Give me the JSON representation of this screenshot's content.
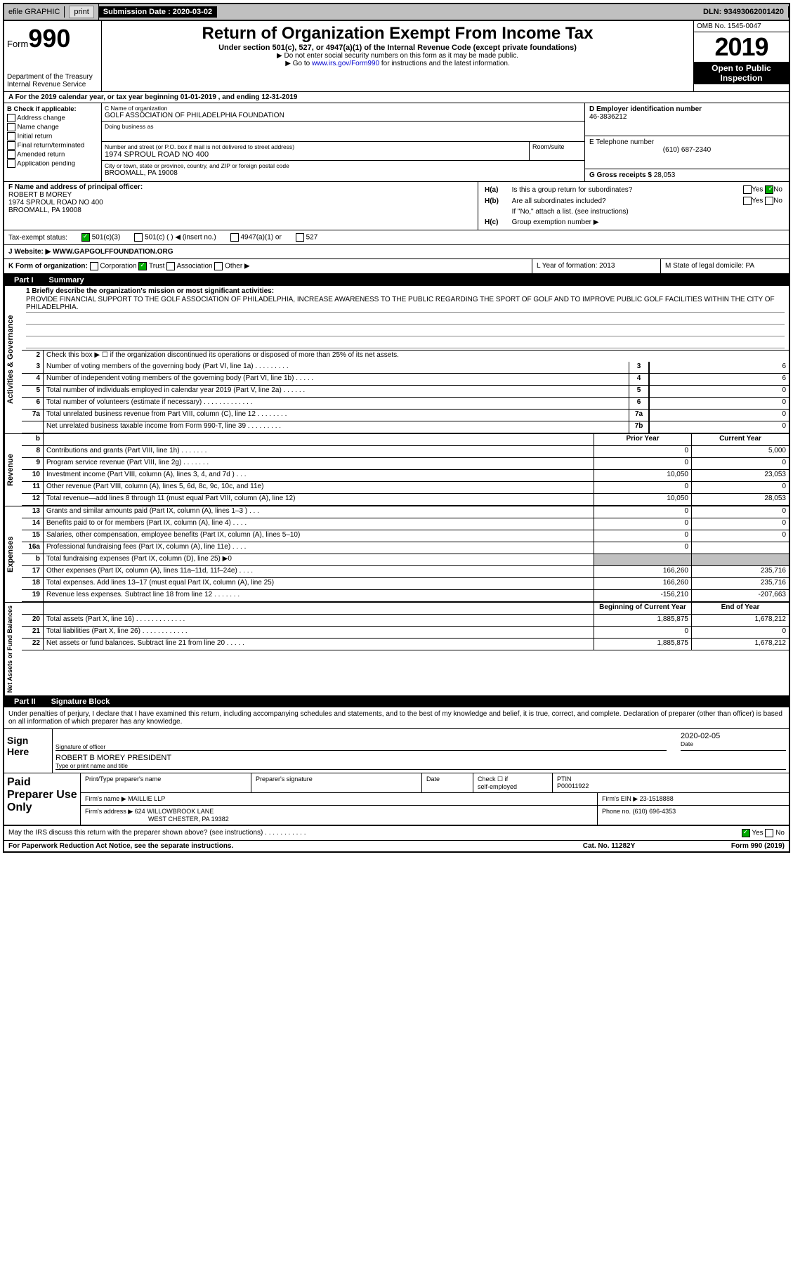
{
  "topbar": {
    "efile": "efile GRAPHIC",
    "print": "print",
    "sub_label": "Submission Date : ",
    "sub_date": "2020-03-02",
    "dln": "DLN: 93493062001420"
  },
  "header": {
    "form_word": "Form",
    "form_num": "990",
    "dept1": "Department of the Treasury",
    "dept2": "Internal Revenue Service",
    "title": "Return of Organization Exempt From Income Tax",
    "sub1": "Under section 501(c), 527, or 4947(a)(1) of the Internal Revenue Code (except private foundations)",
    "sub2": "▶ Do not enter social security numbers on this form as it may be made public.",
    "sub3a": "▶ Go to ",
    "sub3_link": "www.irs.gov/Form990",
    "sub3b": " for instructions and the latest information.",
    "omb": "OMB No. 1545-0047",
    "year": "2019",
    "insp1": "Open to Public",
    "insp2": "Inspection"
  },
  "rowA": {
    "text": "A For the 2019 calendar year, or tax year beginning 01-01-2019    , and ending 12-31-2019"
  },
  "colB": {
    "title": "B Check if applicable:",
    "items": [
      "Address change",
      "Name change",
      "Initial return",
      "Final return/terminated",
      "Amended return",
      "Application pending"
    ]
  },
  "colC": {
    "name_label": "C Name of organization",
    "name": "GOLF ASSOCIATION OF PHILADELPHIA FOUNDATION",
    "dba_label": "Doing business as",
    "dba": "",
    "addr_label": "Number and street (or P.O. box if mail is not delivered to street address)",
    "room_label": "Room/suite",
    "addr": "1974 SPROUL ROAD NO 400",
    "city_label": "City or town, state or province, country, and ZIP or foreign postal code",
    "city": "BROOMALL, PA  19008"
  },
  "colD": {
    "ein_label": "D Employer identification number",
    "ein": "46-3836212",
    "phone_label": "E Telephone number",
    "phone": "(610) 687-2340",
    "gross_label": "G Gross receipts $ ",
    "gross": "28,053"
  },
  "colF": {
    "label": "F  Name and address of principal officer:",
    "name": "ROBERT B MOREY",
    "addr1": "1974 SPROUL ROAD NO 400",
    "addr2": "BROOMALL, PA  19008"
  },
  "colH": {
    "ha_label": "H(a)",
    "ha_text": "Is this a group return for subordinates?",
    "ha_no": true,
    "hb_label": "H(b)",
    "hb_text": "Are all subordinates included?",
    "hb_note": "If \"No,\" attach a list. (see instructions)",
    "hc_label": "H(c)",
    "hc_text": "Group exemption number ▶"
  },
  "status": {
    "label": "Tax-exempt status:",
    "s1": "501(c)(3)",
    "s2": "501(c) (  ) ◀ (insert no.)",
    "s3": "4947(a)(1) or",
    "s4": "527"
  },
  "website": {
    "label": "J   Website: ▶",
    "url": "WWW.GAPGOLFFOUNDATION.ORG"
  },
  "korg": {
    "k": "K Form of organization:",
    "k1": "Corporation",
    "k2": "Trust",
    "k3": "Association",
    "k4": "Other ▶",
    "l": "L Year of formation: 2013",
    "m": "M State of legal domicile: PA"
  },
  "part1": {
    "tab": "Part I",
    "title": "Summary"
  },
  "sideLabels": {
    "ag": "Activities & Governance",
    "rev": "Revenue",
    "exp": "Expenses",
    "na": "Net Assets or Fund Balances"
  },
  "summary": {
    "line1_label": "1  Briefly describe the organization's mission or most significant activities:",
    "line1_text": "PROVIDE FINANCIAL SUPPORT TO THE GOLF ASSOCIATION OF PHILADELPHIA, INCREASE AWARENESS TO THE PUBLIC REGARDING THE SPORT OF GOLF AND TO IMPROVE PUBLIC GOLF FACILITIES WITHIN THE CITY OF PHILADELPHIA.",
    "line2": "Check this box ▶ ☐  if the organization discontinued its operations or disposed of more than 25% of its net assets.",
    "rows_single": [
      {
        "n": "3",
        "t": "Number of voting members of the governing body (Part VI, line 1a)   .   .   .   .   .   .   .   .   .",
        "box": "3",
        "v": "6"
      },
      {
        "n": "4",
        "t": "Number of independent voting members of the governing body (Part VI, line 1b)  .   .   .   .   .",
        "box": "4",
        "v": "6"
      },
      {
        "n": "5",
        "t": "Total number of individuals employed in calendar year 2019 (Part V, line 2a)  .   .   .   .   .   .",
        "box": "5",
        "v": "0"
      },
      {
        "n": "6",
        "t": "Total number of volunteers (estimate if necessary)   .   .   .   .   .   .   .   .   .   .   .   .   .",
        "box": "6",
        "v": "0"
      },
      {
        "n": "7a",
        "t": "Total unrelated business revenue from Part VIII, column (C), line 12  .   .   .   .   .   .   .   .",
        "box": "7a",
        "v": "0"
      },
      {
        "n": "",
        "t": "Net unrelated business taxable income from Form 990-T, line 39   .   .   .   .   .   .   .   .   .",
        "box": "7b",
        "v": "0"
      }
    ],
    "hdr_prior": "Prior Year",
    "hdr_current": "Current Year",
    "rows_rev": [
      {
        "n": "8",
        "t": "Contributions and grants (Part VIII, line 1h)   .   .   .   .   .   .   .",
        "p": "0",
        "c": "5,000"
      },
      {
        "n": "9",
        "t": "Program service revenue (Part VIII, line 2g)   .   .   .   .   .   .   .",
        "p": "0",
        "c": "0"
      },
      {
        "n": "10",
        "t": "Investment income (Part VIII, column (A), lines 3, 4, and 7d )   .   .   .",
        "p": "10,050",
        "c": "23,053"
      },
      {
        "n": "11",
        "t": "Other revenue (Part VIII, column (A), lines 5, 6d, 8c, 9c, 10c, and 11e)",
        "p": "0",
        "c": "0"
      },
      {
        "n": "12",
        "t": "Total revenue—add lines 8 through 11 (must equal Part VIII, column (A), line 12)",
        "p": "10,050",
        "c": "28,053"
      }
    ],
    "rows_exp": [
      {
        "n": "13",
        "t": "Grants and similar amounts paid (Part IX, column (A), lines 1–3 )   .   .   .",
        "p": "0",
        "c": "0"
      },
      {
        "n": "14",
        "t": "Benefits paid to or for members (Part IX, column (A), line 4)   .   .   .   .",
        "p": "0",
        "c": "0"
      },
      {
        "n": "15",
        "t": "Salaries, other compensation, employee benefits (Part IX, column (A), lines 5–10)",
        "p": "0",
        "c": "0"
      },
      {
        "n": "16a",
        "t": "Professional fundraising fees (Part IX, column (A), line 11e)   .   .   .   .",
        "p": "0",
        "c": ""
      },
      {
        "n": "b",
        "t": "Total fundraising expenses (Part IX, column (D), line 25) ▶0",
        "p": "shaded",
        "c": "shaded"
      },
      {
        "n": "17",
        "t": "Other expenses (Part IX, column (A), lines 11a–11d, 11f–24e)   .   .   .   .",
        "p": "166,260",
        "c": "235,716"
      },
      {
        "n": "18",
        "t": "Total expenses. Add lines 13–17 (must equal Part IX, column (A), line 25)",
        "p": "166,260",
        "c": "235,716"
      },
      {
        "n": "19",
        "t": "Revenue less expenses. Subtract line 18 from line 12 .   .   .   .   .   .   .",
        "p": "-156,210",
        "c": "-207,663"
      }
    ],
    "hdr_boy": "Beginning of Current Year",
    "hdr_eoy": "End of Year",
    "rows_na": [
      {
        "n": "20",
        "t": "Total assets (Part X, line 16) .   .   .   .   .   .   .   .   .   .   .   .   .",
        "p": "1,885,875",
        "c": "1,678,212"
      },
      {
        "n": "21",
        "t": "Total liabilities (Part X, line 26) .   .   .   .   .   .   .   .   .   .   .   .",
        "p": "0",
        "c": "0"
      },
      {
        "n": "22",
        "t": "Net assets or fund balances. Subtract line 21 from line 20 .   .   .   .   .",
        "p": "1,885,875",
        "c": "1,678,212"
      }
    ]
  },
  "part2": {
    "tab": "Part II",
    "title": "Signature Block"
  },
  "perjury": "Under penalties of perjury, I declare that I have examined this return, including accompanying schedules and statements, and to the best of my knowledge and belief, it is true, correct, and complete. Declaration of preparer (other than officer) is based on all information of which preparer has any knowledge.",
  "sign": {
    "left": "Sign Here",
    "sig_label": "Signature of officer",
    "date_label": "Date",
    "date": "2020-02-05",
    "name": "ROBERT B MOREY PRESIDENT",
    "name_label": "Type or print name and title"
  },
  "prep": {
    "left": "Paid Preparer Use Only",
    "c1": "Print/Type preparer's name",
    "c2": "Preparer's signature",
    "c3": "Date",
    "c4a": "Check ☐ if",
    "c4b": "self-employed",
    "c5": "PTIN",
    "ptin": "P00011922",
    "firm_label": "Firm's name   ▶",
    "firm": "MAILLIE LLP",
    "ein_label": "Firm's EIN ▶",
    "ein": "23-1518888",
    "addr_label": "Firm's address ▶",
    "addr1": "624 WILLOWBROOK LANE",
    "addr2": "WEST CHESTER, PA  19382",
    "phone_label": "Phone no.",
    "phone": "(610) 696-4353"
  },
  "discuss": {
    "text": "May the IRS discuss this return with the preparer shown above? (see instructions)   .   .   .   .   .   .   .   .   .   .   .",
    "yes": "Yes",
    "no": "No"
  },
  "footer": {
    "left": "For Paperwork Reduction Act Notice, see the separate instructions.",
    "mid": "Cat. No. 11282Y",
    "right": "Form 990 (2019)"
  }
}
